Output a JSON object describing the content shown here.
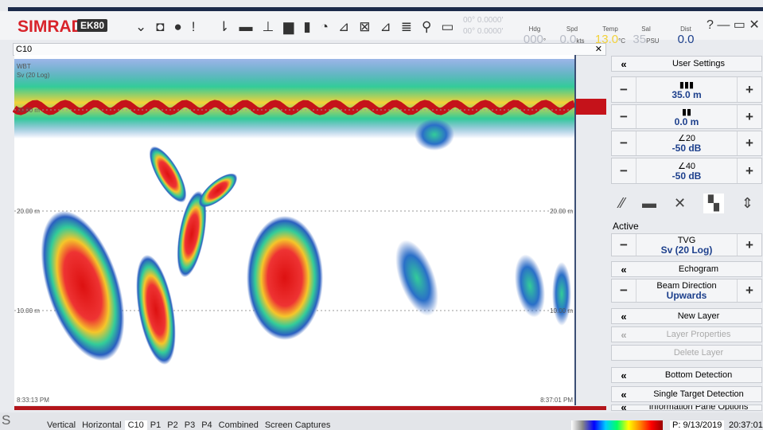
{
  "toolbar": {
    "brand": "SIMRAD",
    "model": "EK80",
    "position": [
      "00° 0.0000'",
      "00° 0.0000'"
    ],
    "readouts": [
      {
        "label": "Hdg",
        "value": "000",
        "unit": "°"
      },
      {
        "label": "Spd",
        "value": "0.0",
        "unit": "kts"
      },
      {
        "label": "Temp",
        "value": "13.0",
        "unit": "°C"
      },
      {
        "label": "Sal",
        "value": "35",
        "unit": "PSU"
      },
      {
        "label": "Dist",
        "value": "0.0",
        "unit": ""
      }
    ]
  },
  "echogram": {
    "title": "C10",
    "channel": "WBT",
    "mode": "Sv (20 Log)",
    "depth_labels": [
      "20.00 m",
      "20.00 m",
      "10.00 m"
    ],
    "start_time": "8:33:13 PM",
    "end_time": "8:37:01 PM"
  },
  "panel": {
    "user_settings": "User Settings",
    "range": "35.0 m",
    "start": "0.0 m",
    "color_min": {
      "top": "20",
      "bottom": "-50 dB"
    },
    "color_max": {
      "top": "40",
      "bottom": "-50 dB"
    },
    "active": "Active",
    "tvg": {
      "label": "TVG",
      "value": "Sv (20 Log)"
    },
    "echogram": "Echogram",
    "beam": {
      "label": "Beam Direction",
      "value": "Upwards"
    },
    "new_layer": "New Layer",
    "layer_properties": "Layer Properties",
    "delete_layer": "Delete Layer",
    "bottom_detection": "Bottom Detection",
    "single_target": "Single Target Detection",
    "info_pane": "Information Pane Options"
  },
  "tabs": [
    "Vertical",
    "Horizontal",
    "C10",
    "P1",
    "P2",
    "P3",
    "P4",
    "Combined",
    "Screen Captures"
  ],
  "status": {
    "side": "S",
    "date": "P: 9/13/2019",
    "time": "20:37:01"
  }
}
